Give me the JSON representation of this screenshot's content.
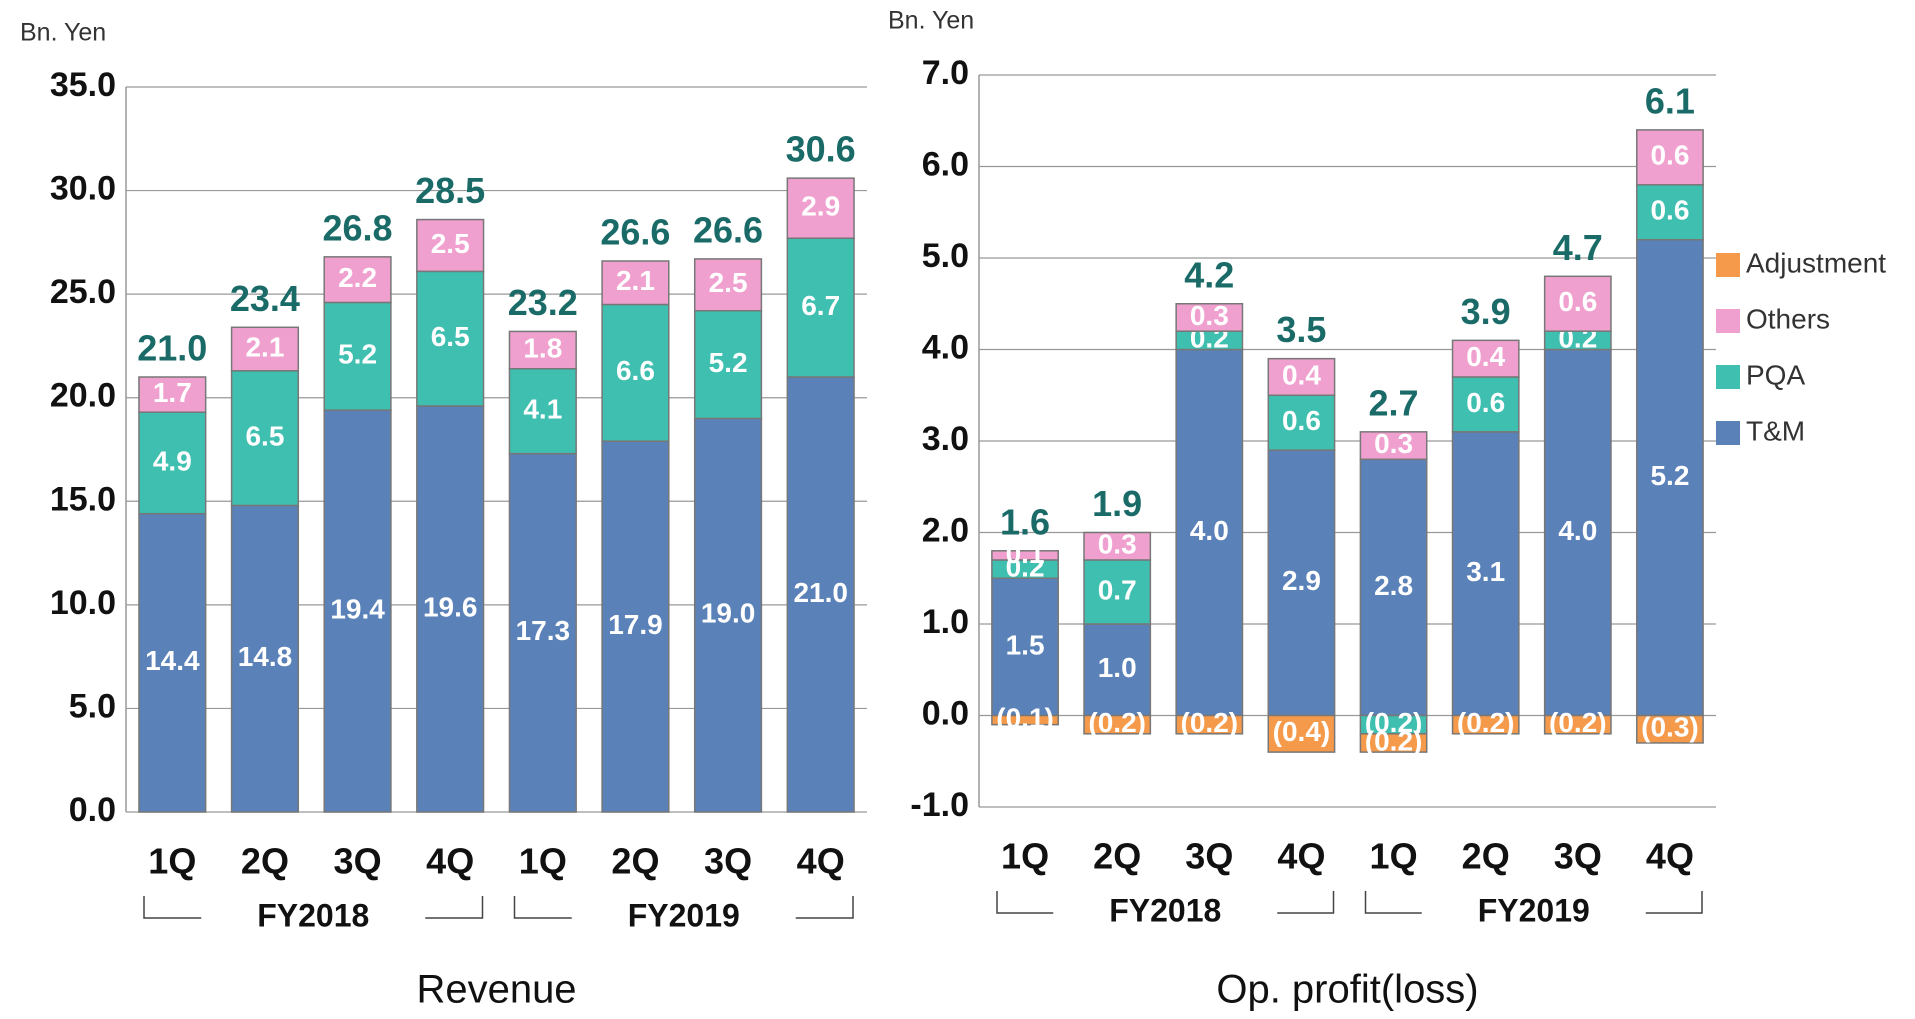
{
  "chart_data": [
    {
      "type": "bar",
      "stacked": true,
      "title": "Revenue",
      "ylabel": "Bn. Yen",
      "categories": [
        "1Q",
        "2Q",
        "3Q",
        "4Q",
        "1Q",
        "2Q",
        "3Q",
        "4Q"
      ],
      "groups": [
        "FY2018",
        "FY2019"
      ],
      "ylim": [
        0,
        35
      ],
      "yticks": [
        {
          "value": 0,
          "label": "0.0"
        },
        {
          "value": 5,
          "label": "5.0"
        },
        {
          "value": 10,
          "label": "10.0"
        },
        {
          "value": 15,
          "label": "15.0"
        },
        {
          "value": 20,
          "label": "20.0"
        },
        {
          "value": 25,
          "label": "25.0"
        },
        {
          "value": 30,
          "label": "30.0"
        },
        {
          "value": 35,
          "label": "35.0"
        }
      ],
      "grid": true,
      "series": [
        {
          "color": "#5b82b8",
          "values": [
            14.4,
            14.8,
            19.4,
            19.6,
            17.3,
            17.9,
            19.0,
            21.0
          ],
          "value_labels": [
            "14.4",
            "14.8",
            "19.4",
            "19.6",
            "17.3",
            "17.9",
            "19.0",
            "21.0"
          ]
        },
        {
          "color": "#3fbfb0",
          "values": [
            4.9,
            6.5,
            5.2,
            6.5,
            4.1,
            6.6,
            5.2,
            6.7
          ],
          "value_labels": [
            "4.9",
            "6.5",
            "5.2",
            "6.5",
            "4.1",
            "6.6",
            "5.2",
            "6.7"
          ]
        },
        {
          "color": "#f0a0cf",
          "values": [
            1.7,
            2.1,
            2.2,
            2.5,
            1.8,
            2.1,
            2.5,
            2.9
          ],
          "value_labels": [
            "1.7",
            "2.1",
            "2.2",
            "2.5",
            "1.8",
            "2.1",
            "2.5",
            "2.9"
          ]
        }
      ],
      "totals": {
        "values": [
          21.0,
          23.4,
          26.8,
          28.5,
          23.2,
          26.6,
          26.6,
          30.6
        ],
        "value_labels": [
          "21.0",
          "23.4",
          "26.8",
          "28.5",
          "23.2",
          "26.6",
          "26.6",
          "30.6"
        ]
      }
    },
    {
      "type": "bar",
      "stacked": true,
      "title": "Op. profit(loss)",
      "ylabel": "Bn. Yen",
      "categories": [
        "1Q",
        "2Q",
        "3Q",
        "4Q",
        "1Q",
        "2Q",
        "3Q",
        "4Q"
      ],
      "groups": [
        "FY2018",
        "FY2019"
      ],
      "ylim": [
        -1,
        7
      ],
      "yticks": [
        {
          "value": -1,
          "label": "-1.0"
        },
        {
          "value": 0,
          "label": "0.0"
        },
        {
          "value": 1,
          "label": "1.0"
        },
        {
          "value": 2,
          "label": "2.0"
        },
        {
          "value": 3,
          "label": "3.0"
        },
        {
          "value": 4,
          "label": "4.0"
        },
        {
          "value": 5,
          "label": "5.0"
        },
        {
          "value": 6,
          "label": "6.0"
        },
        {
          "value": 7,
          "label": "7.0"
        }
      ],
      "grid": true,
      "legend": "right",
      "series": [
        {
          "name": "T&M",
          "color": "#5b82b8",
          "values": [
            1.5,
            1.0,
            4.0,
            2.9,
            2.8,
            3.1,
            4.0,
            5.2
          ],
          "value_labels": [
            "1.5",
            "1.0",
            "4.0",
            "2.9",
            "2.8",
            "3.1",
            "4.0",
            "5.2"
          ]
        },
        {
          "name": "PQA",
          "color": "#3fbfb0",
          "values": [
            0.2,
            0.7,
            0.2,
            0.6,
            -0.2,
            0.6,
            0.2,
            0.6
          ],
          "value_labels": [
            "0.2",
            "0.7",
            "0.2",
            "0.6",
            "(0.2)",
            "0.6",
            "0.2",
            "0.6"
          ]
        },
        {
          "name": "Others",
          "color": "#f0a0cf",
          "values": [
            0.1,
            0.3,
            0.3,
            0.4,
            0.3,
            0.4,
            0.6,
            0.6
          ],
          "value_labels": [
            "0.1",
            "0.3",
            "0.3",
            "0.4",
            "0.3",
            "0.4",
            "0.6",
            "0.6"
          ]
        },
        {
          "name": "Adjustment",
          "color": "#f59a4a",
          "values": [
            -0.1,
            -0.2,
            -0.2,
            -0.4,
            -0.2,
            -0.2,
            -0.2,
            -0.3
          ],
          "value_labels": [
            "(0.1)",
            "(0.2)",
            "(0.2)",
            "(0.4)",
            "(0.2)",
            "(0.2)",
            "(0.2)",
            "(0.3)"
          ]
        }
      ],
      "totals": {
        "values": [
          1.6,
          1.9,
          4.2,
          3.5,
          2.7,
          3.9,
          4.7,
          6.1
        ],
        "value_labels": [
          "1.6",
          "1.9",
          "4.2",
          "3.5",
          "2.7",
          "3.9",
          "4.7",
          "6.1"
        ]
      }
    }
  ]
}
